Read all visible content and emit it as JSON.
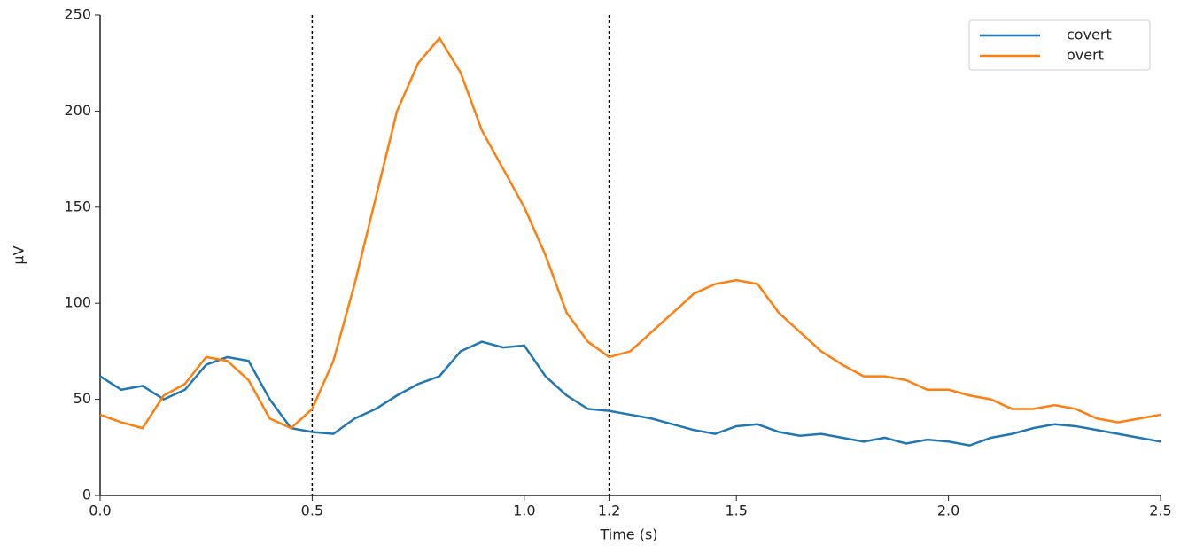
{
  "chart_data": {
    "type": "line",
    "xlabel": "Time (s)",
    "ylabel": "μV",
    "x": [
      0,
      0.05,
      0.1,
      0.15,
      0.2,
      0.25,
      0.3,
      0.35,
      0.4,
      0.45,
      0.5,
      0.55,
      0.6,
      0.65,
      0.7,
      0.75,
      0.8,
      0.85,
      0.9,
      0.95,
      1.0,
      1.05,
      1.1,
      1.15,
      1.2,
      1.25,
      1.3,
      1.35,
      1.4,
      1.45,
      1.5,
      1.55,
      1.6,
      1.65,
      1.7,
      1.75,
      1.8,
      1.85,
      1.9,
      1.95,
      2.0,
      2.05,
      2.1,
      2.15,
      2.2,
      2.25,
      2.3,
      2.35,
      2.4,
      2.45,
      2.5
    ],
    "series": [
      {
        "name": "covert",
        "color": "#1f77b4",
        "values": [
          62,
          55,
          57,
          50,
          55,
          68,
          72,
          70,
          50,
          35,
          33,
          32,
          40,
          45,
          52,
          58,
          62,
          75,
          80,
          77,
          78,
          62,
          52,
          45,
          44,
          42,
          40,
          37,
          34,
          32,
          36,
          37,
          33,
          31,
          32,
          30,
          28,
          30,
          27,
          29,
          28,
          26,
          30,
          32,
          35,
          37,
          36,
          34,
          32,
          30,
          28
        ]
      },
      {
        "name": "overt",
        "color": "#ff7f0e",
        "values": [
          42,
          38,
          35,
          52,
          58,
          72,
          70,
          60,
          40,
          35,
          45,
          70,
          110,
          155,
          200,
          225,
          238,
          220,
          190,
          170,
          150,
          125,
          95,
          80,
          72,
          75,
          85,
          95,
          105,
          110,
          112,
          110,
          95,
          85,
          75,
          68,
          62,
          62,
          60,
          55,
          55,
          52,
          50,
          45,
          45,
          47,
          45,
          40,
          38,
          40,
          42
        ]
      }
    ],
    "xlim": [
      0,
      2.5
    ],
    "ylim": [
      0,
      250
    ],
    "xticks": [
      {
        "value": 0,
        "label": "0.0"
      },
      0.5,
      {
        "value": 1,
        "label": "1.0"
      },
      1.2,
      1.5,
      {
        "value": 2,
        "label": "2.0"
      },
      2.5
    ],
    "yticks": [
      0,
      50,
      100,
      150,
      200,
      250
    ],
    "vlines": [
      0.5,
      1.2
    ],
    "legend": "upper right"
  }
}
